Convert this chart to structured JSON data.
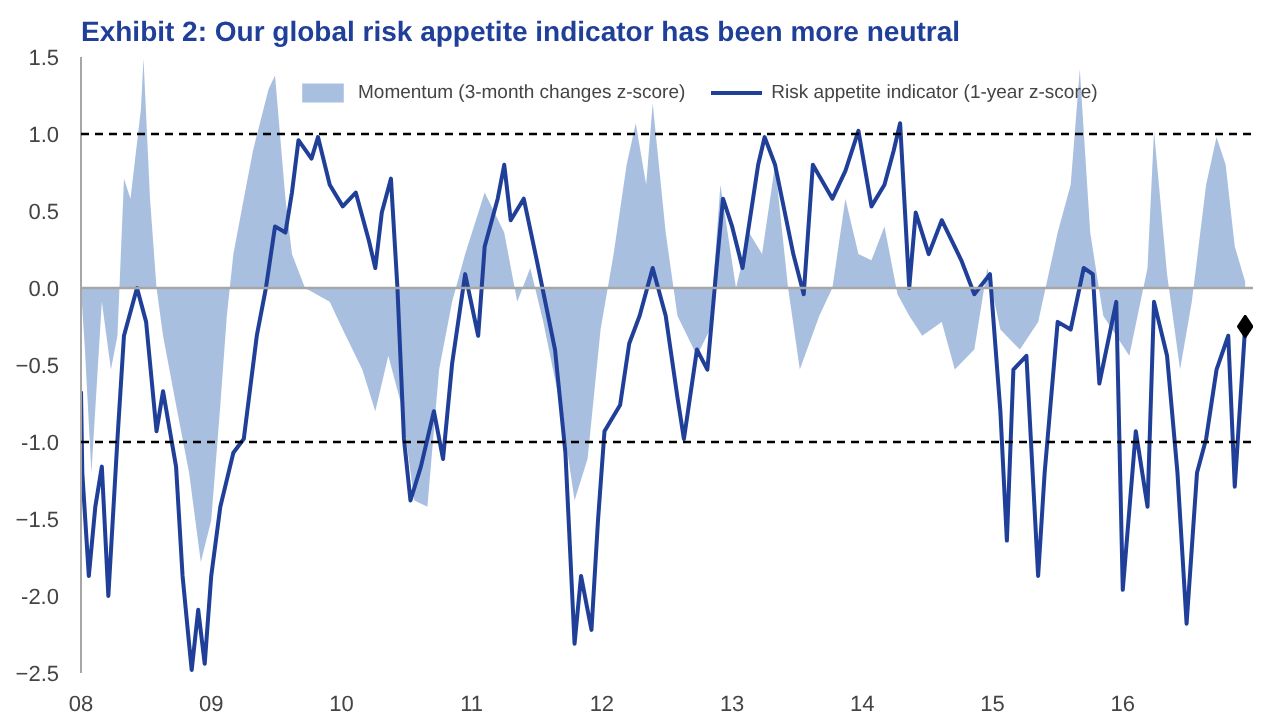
{
  "chart_data": {
    "type": "line",
    "title": "Exhibit 2: Our global risk appetite indicator has been more neutral",
    "series": [
      {
        "name": "Momentum (3-month changes z-score)",
        "type": "area",
        "color": "#a9bfe0",
        "x": [
          2008.0,
          2008.03,
          2008.08,
          2008.16,
          2008.23,
          2008.28,
          2008.33,
          2008.38,
          2008.46,
          2008.48,
          2008.53,
          2008.58,
          2008.63,
          2008.73,
          2008.83,
          2008.92,
          2009.0,
          2009.07,
          2009.12,
          2009.17,
          2009.25,
          2009.32,
          2009.44,
          2009.49,
          2009.57,
          2009.62,
          2009.72,
          2009.91,
          2010.01,
          2010.16,
          2010.26,
          2010.36,
          2010.46,
          2010.56,
          2010.66,
          2010.75,
          2010.85,
          2010.95,
          2011.1,
          2011.25,
          2011.35,
          2011.45,
          2011.55,
          2011.69,
          2011.79,
          2011.89,
          2011.99,
          2012.09,
          2012.19,
          2012.26,
          2012.34,
          2012.39,
          2012.49,
          2012.58,
          2012.73,
          2012.83,
          2012.91,
          2013.03,
          2013.13,
          2013.23,
          2013.33,
          2013.43,
          2013.52,
          2013.67,
          2013.77,
          2013.87,
          2013.97,
          2014.07,
          2014.17,
          2014.27,
          2014.36,
          2014.46,
          2014.61,
          2014.71,
          2014.86,
          2014.96,
          2015.06,
          2015.21,
          2015.35,
          2015.5,
          2015.6,
          2015.67,
          2015.75,
          2015.85,
          2016.05,
          2016.19,
          2016.24,
          2016.34,
          2016.44,
          2016.53,
          2016.64,
          2016.72,
          2016.79,
          2016.86,
          2016.94
        ],
        "values": [
          0.0,
          -0.4,
          -1.2,
          -0.09,
          -0.53,
          -0.31,
          0.71,
          0.58,
          1.16,
          1.49,
          0.58,
          0.0,
          -0.31,
          -0.76,
          -1.2,
          -1.78,
          -1.51,
          -0.76,
          -0.18,
          0.22,
          0.58,
          0.89,
          1.29,
          1.38,
          0.58,
          0.22,
          0.0,
          -0.09,
          -0.27,
          -0.53,
          -0.8,
          -0.44,
          -0.76,
          -1.38,
          -1.42,
          -0.53,
          -0.09,
          0.22,
          0.62,
          0.36,
          -0.09,
          0.13,
          -0.22,
          -0.8,
          -1.38,
          -1.11,
          -0.27,
          0.22,
          0.8,
          1.07,
          0.67,
          1.2,
          0.36,
          -0.18,
          -0.44,
          -0.27,
          0.67,
          0.0,
          0.36,
          0.22,
          0.8,
          0.0,
          -0.53,
          -0.18,
          0.0,
          0.58,
          0.22,
          0.18,
          0.4,
          -0.04,
          -0.18,
          -0.31,
          -0.22,
          -0.53,
          -0.4,
          0.13,
          -0.27,
          -0.4,
          -0.22,
          0.36,
          0.67,
          1.42,
          0.36,
          -0.18,
          -0.44,
          0.13,
          1.02,
          0.09,
          -0.53,
          -0.09,
          0.67,
          0.98,
          0.8,
          0.27,
          0.04
        ]
      },
      {
        "name": "Risk appetite indicator (1-year z-score)",
        "type": "line",
        "color": "#1f3f99",
        "x": [
          2008.0,
          2008.01,
          2008.06,
          2008.11,
          2008.16,
          2008.21,
          2008.28,
          2008.33,
          2008.43,
          2008.5,
          2008.58,
          2008.63,
          2008.73,
          2008.78,
          2008.83,
          2008.85,
          2008.9,
          2008.95,
          2009.0,
          2009.07,
          2009.17,
          2009.25,
          2009.35,
          2009.42,
          2009.49,
          2009.57,
          2009.62,
          2009.67,
          2009.77,
          2009.82,
          2009.91,
          2010.01,
          2010.11,
          2010.21,
          2010.26,
          2010.31,
          2010.38,
          2010.43,
          2010.48,
          2010.53,
          2010.61,
          2010.71,
          2010.78,
          2010.85,
          2010.95,
          2011.05,
          2011.1,
          2011.2,
          2011.25,
          2011.3,
          2011.4,
          2011.5,
          2011.64,
          2011.72,
          2011.79,
          2011.84,
          2011.89,
          2011.92,
          2011.97,
          2012.02,
          2012.14,
          2012.21,
          2012.29,
          2012.39,
          2012.49,
          2012.58,
          2012.63,
          2012.73,
          2012.81,
          2012.88,
          2012.93,
          2013.0,
          2013.08,
          2013.2,
          2013.25,
          2013.33,
          2013.47,
          2013.55,
          2013.62,
          2013.77,
          2013.87,
          2013.97,
          2014.07,
          2014.17,
          2014.24,
          2014.29,
          2014.36,
          2014.41,
          2014.51,
          2014.61,
          2014.76,
          2014.86,
          2014.98,
          2015.06,
          2015.11,
          2015.16,
          2015.26,
          2015.35,
          2015.4,
          2015.5,
          2015.6,
          2015.7,
          2015.77,
          2015.82,
          2015.95,
          2016.0,
          2016.1,
          2016.19,
          2016.24,
          2016.34,
          2016.42,
          2016.49,
          2016.57,
          2016.64,
          2016.72,
          2016.81,
          2016.86,
          2016.94
        ],
        "values": [
          -0.67,
          -1.2,
          -1.87,
          -1.42,
          -1.16,
          -2.0,
          -0.98,
          -0.31,
          0.0,
          -0.22,
          -0.93,
          -0.67,
          -1.16,
          -1.87,
          -2.31,
          -2.48,
          -2.09,
          -2.44,
          -1.87,
          -1.42,
          -1.07,
          -0.98,
          -0.31,
          0.0,
          0.4,
          0.36,
          0.62,
          0.96,
          0.84,
          0.98,
          0.67,
          0.53,
          0.62,
          0.31,
          0.13,
          0.49,
          0.71,
          0.0,
          -0.98,
          -1.38,
          -1.16,
          -0.8,
          -1.11,
          -0.49,
          0.09,
          -0.31,
          0.27,
          0.58,
          0.8,
          0.44,
          0.58,
          0.18,
          -0.4,
          -1.07,
          -2.31,
          -1.87,
          -2.09,
          -2.22,
          -1.51,
          -0.93,
          -0.76,
          -0.36,
          -0.18,
          0.13,
          -0.18,
          -0.71,
          -0.98,
          -0.4,
          -0.53,
          0.13,
          0.58,
          0.4,
          0.13,
          0.8,
          0.98,
          0.8,
          0.22,
          -0.04,
          0.8,
          0.58,
          0.76,
          1.02,
          0.53,
          0.67,
          0.89,
          1.07,
          0.0,
          0.49,
          0.22,
          0.44,
          0.18,
          -0.04,
          0.09,
          -0.8,
          -1.64,
          -0.53,
          -0.44,
          -1.87,
          -1.2,
          -0.22,
          -0.27,
          0.13,
          0.09,
          -0.62,
          -0.09,
          -1.96,
          -0.93,
          -1.42,
          -0.09,
          -0.44,
          -1.2,
          -2.18,
          -1.2,
          -0.98,
          -0.53,
          -0.31,
          -1.29,
          -0.25
        ]
      },
      {
        "type": "scatter",
        "marker": "diamond",
        "color": "#000000",
        "x": [
          2016.94
        ],
        "values": [
          -0.25
        ]
      }
    ],
    "xlim": [
      2008,
      2017.0
    ],
    "xticks": [
      {
        "value": 2008,
        "label": "08"
      },
      {
        "value": 2009,
        "label": "09"
      },
      {
        "value": 2010,
        "label": "10"
      },
      {
        "value": 2011,
        "label": "11"
      },
      {
        "value": 2012,
        "label": "12"
      },
      {
        "value": 2013,
        "label": "13"
      },
      {
        "value": 2014,
        "label": "14"
      },
      {
        "value": 2015,
        "label": "15"
      },
      {
        "value": 2016,
        "label": "16"
      }
    ],
    "ylim": [
      -2.5,
      1.5
    ],
    "yticks": [
      1.5,
      {
        "value": 1,
        "label": "1.0"
      },
      0.5,
      {
        "value": 0,
        "label": "0.0"
      },
      -0.5,
      {
        "value": -1,
        "label": "-1.0"
      },
      -1.5,
      {
        "value": -2,
        "label": "-2.0"
      },
      -2.5
    ],
    "ref_lines": [
      {
        "axis": "y",
        "value": 0,
        "color": "#a6a6a6",
        "line_style": "solid"
      },
      {
        "axis": "y",
        "value": 1,
        "color": "#000000",
        "line_style": "dashed"
      },
      {
        "axis": "y",
        "value": -1,
        "color": "#000000",
        "line_style": "dashed"
      }
    ],
    "grid": false,
    "legend": "top"
  }
}
